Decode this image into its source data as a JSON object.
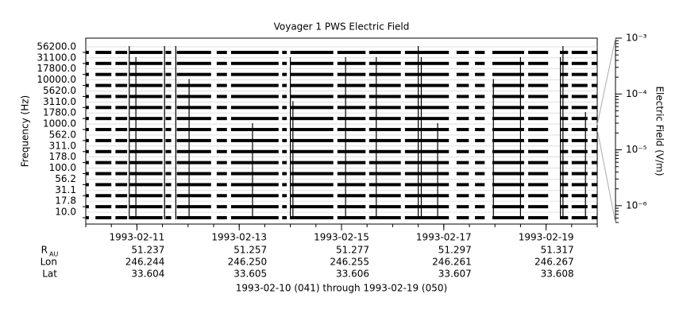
{
  "chart_data": {
    "type": "stripchart",
    "title": "Voyager 1 PWS Electric Field",
    "ylabel": "Frequency (Hz)",
    "y2label": "Electric Field (V/m)",
    "categories": [
      "10.0",
      "17.8",
      "31.1",
      "56.2",
      "100.0",
      "178.0",
      "311.0",
      "562.0",
      "1000.0",
      "1780.0",
      "3110.0",
      "5620.0",
      "10000.0",
      "17800.0",
      "31100.0",
      "56200.0"
    ],
    "xlim": [
      0,
      10
    ],
    "xticks": [
      {
        "value": 1,
        "label": "1993-02-11"
      },
      {
        "value": 3,
        "label": "1993-02-13"
      },
      {
        "value": 5,
        "label": "1993-02-15"
      },
      {
        "value": 7,
        "label": "1993-02-17"
      },
      {
        "value": 9,
        "label": "1993-02-19"
      }
    ],
    "y2lim": [
      5e-07,
      0.001
    ],
    "y2scale": "log",
    "y2ticks": [
      {
        "value": 0.001,
        "label": "10⁻³"
      },
      {
        "value": 0.0001,
        "label": "10⁻⁴"
      },
      {
        "value": 1e-05,
        "label": "10⁻⁵"
      },
      {
        "value": 1e-06,
        "label": "10⁻⁶"
      }
    ],
    "color": "#000000",
    "coverage": [
      [
        0,
        0.06
      ],
      [
        0.19,
        0.5
      ],
      [
        0.58,
        0.81
      ],
      [
        0.86,
        1.5
      ],
      [
        1.56,
        1.67
      ],
      [
        1.78,
        2.45
      ],
      [
        2.56,
        2.76
      ],
      [
        2.84,
        3.77
      ],
      [
        3.84,
        3.93
      ],
      [
        4.0,
        4.84
      ],
      [
        4.92,
        5.47
      ],
      [
        5.54,
        6.16
      ],
      [
        6.24,
        7.1
      ],
      [
        7.25,
        7.49
      ],
      [
        7.61,
        7.8
      ],
      [
        7.95,
        8.57
      ],
      [
        8.65,
        9.04
      ],
      [
        9.27,
        9.43
      ],
      [
        9.5,
        9.81
      ],
      [
        9.89,
        10
      ]
    ],
    "spikes": {
      "x": [
        0.85,
        0.98,
        1.54,
        1.76,
        2.02,
        3.26,
        4.0,
        4.05,
        5.08,
        5.68,
        6.5,
        6.56,
        6.88,
        7.97,
        8.5,
        9.28,
        9.33,
        9.77
      ],
      "top": [
        "56200.0",
        "31100.0",
        "56200.0",
        "56200.0",
        "10000.0",
        "1000.0",
        "31100.0",
        "3110.0",
        "31100.0",
        "31100.0",
        "56200.0",
        "31100.0",
        "1000.0",
        "10000.0",
        "31100.0",
        "31100.0",
        "56200.0",
        "1780.0"
      ]
    },
    "ephemeris": {
      "rows": [
        {
          "label": "R",
          "sub": "AU",
          "values": [
            "51.237",
            "51.257",
            "51.277",
            "51.297",
            "51.317"
          ]
        },
        {
          "label": "Lon",
          "values": [
            "246.244",
            "246.250",
            "246.255",
            "246.261",
            "246.267"
          ]
        },
        {
          "label": "Lat",
          "values": [
            "33.604",
            "33.605",
            "33.606",
            "33.607",
            "33.608"
          ]
        }
      ]
    },
    "footer": "1993-02-10 (041) through 1993-02-19 (050)"
  }
}
